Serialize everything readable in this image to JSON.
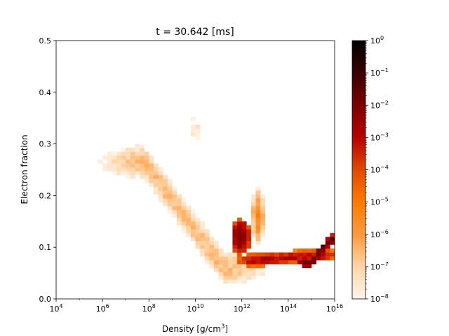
{
  "chart_data": {
    "type": "heatmap",
    "title": "t = 30.642 [ms]",
    "xlabel": "Density [g/cm",
    "xlabel_sup": "3",
    "xlabel_end": "]",
    "ylabel": "Electron fraction",
    "x_scale": "log",
    "x_range": [
      4,
      16
    ],
    "y_range": [
      0.0,
      0.5
    ],
    "x_ticks": [
      {
        "exp": 4,
        "label": "10",
        "sup": "4"
      },
      {
        "exp": 6,
        "label": "10",
        "sup": "6"
      },
      {
        "exp": 8,
        "label": "10",
        "sup": "8"
      },
      {
        "exp": 10,
        "label": "10",
        "sup": "10"
      },
      {
        "exp": 12,
        "label": "10",
        "sup": "12"
      },
      {
        "exp": 14,
        "label": "10",
        "sup": "14"
      },
      {
        "exp": 16,
        "label": "10",
        "sup": "16"
      }
    ],
    "y_ticks": [
      {
        "value": 0.0,
        "label": "0.0"
      },
      {
        "value": 0.1,
        "label": "0.1"
      },
      {
        "value": 0.2,
        "label": "0.2"
      },
      {
        "value": 0.3,
        "label": "0.3"
      },
      {
        "value": 0.4,
        "label": "0.4"
      },
      {
        "value": 0.5,
        "label": "0.5"
      }
    ],
    "colorbar": {
      "scale": "log",
      "range_exp": [
        -8,
        0
      ],
      "colormap": [
        "#fff5eb",
        "#ffd5a8",
        "#ff9a3c",
        "#ff7a00",
        "#e04a00",
        "#b80000",
        "#7a0000",
        "#3a0000",
        "#000000"
      ],
      "ticks": [
        {
          "exp": 0,
          "label": "10",
          "sup": "0"
        },
        {
          "exp": -1,
          "label": "10",
          "sup": "−1"
        },
        {
          "exp": -2,
          "label": "10",
          "sup": "−2"
        },
        {
          "exp": -3,
          "label": "10",
          "sup": "−3"
        },
        {
          "exp": -4,
          "label": "10",
          "sup": "−4"
        },
        {
          "exp": -5,
          "label": "10",
          "sup": "−5"
        },
        {
          "exp": -6,
          "label": "10",
          "sup": "−6"
        },
        {
          "exp": -7,
          "label": "10",
          "sup": "−7"
        },
        {
          "exp": -8,
          "label": "10",
          "sup": "−8"
        }
      ]
    },
    "bins": {
      "dx": 0.2,
      "dy": 0.0075
    },
    "features": [
      {
        "name": "diagonal-band",
        "x0": 7.8,
        "y0": 0.265,
        "x1": 11.2,
        "y1": 0.06,
        "width": 0.04,
        "level": -6.6
      },
      {
        "name": "upper-plume",
        "x": 10.0,
        "y": 0.33,
        "sx": 0.55,
        "sy": 0.06,
        "level": -7.6
      },
      {
        "name": "central-peak",
        "x": 11.95,
        "y": 0.12,
        "sx": 0.45,
        "sy": 0.035,
        "level": -2.0
      },
      {
        "name": "right-spike",
        "x": 12.7,
        "y": 0.16,
        "sx": 0.3,
        "sy": 0.055,
        "level": -5.5
      },
      {
        "name": "high-density-tail",
        "x0": 12.5,
        "y0": 0.075,
        "x1": 15.4,
        "y1": 0.085,
        "width": 0.013,
        "level": -3.0
      },
      {
        "name": "tail-upturn",
        "x0": 15.0,
        "y0": 0.07,
        "x1": 15.8,
        "y1": 0.115,
        "width": 0.01,
        "level": -1.5
      }
    ]
  }
}
